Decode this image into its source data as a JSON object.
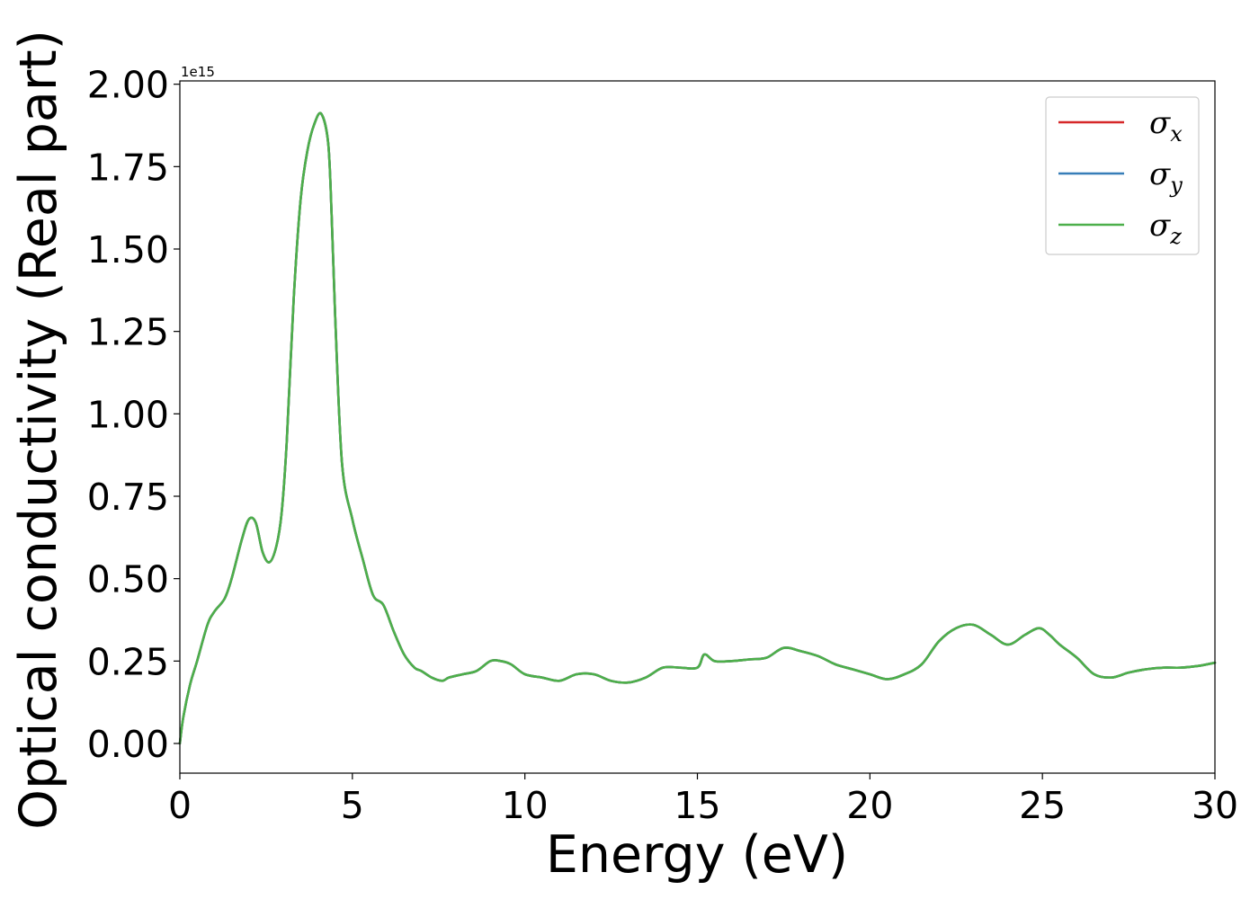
{
  "chart_data": {
    "type": "line",
    "xlabel": "Energy (eV)",
    "ylabel": "Optical conductivity (Real part)",
    "y_offset_label": "1e15",
    "y_scale": 1000000000000000.0,
    "xlim": [
      0,
      30
    ],
    "ylim": [
      -0.09,
      2.01
    ],
    "x_ticks": [
      0,
      5,
      10,
      15,
      20,
      25,
      30
    ],
    "x_tick_labels": [
      "0",
      "5",
      "10",
      "15",
      "20",
      "25",
      "30"
    ],
    "y_ticks": [
      0.0,
      0.25,
      0.5,
      0.75,
      1.0,
      1.25,
      1.5,
      1.75,
      2.0
    ],
    "y_tick_labels": [
      "0.00",
      "0.25",
      "0.50",
      "0.75",
      "1.00",
      "1.25",
      "1.50",
      "1.75",
      "2.00"
    ],
    "grid": false,
    "legend": {
      "position": "top-right",
      "entries": [
        {
          "base": "σ",
          "sub": "x",
          "color": "#d62728"
        },
        {
          "base": "σ",
          "sub": "y",
          "color": "#377eb8"
        },
        {
          "base": "σ",
          "sub": "z",
          "color": "#4daf4a"
        }
      ]
    },
    "x": [
      0.0,
      0.1,
      0.3,
      0.5,
      0.8,
      1.0,
      1.3,
      1.5,
      1.8,
      2.0,
      2.2,
      2.4,
      2.6,
      2.8,
      2.95,
      3.1,
      3.3,
      3.5,
      3.7,
      3.9,
      4.1,
      4.3,
      4.4,
      4.5,
      4.7,
      5.0,
      5.3,
      5.6,
      5.9,
      6.2,
      6.5,
      6.8,
      7.0,
      7.3,
      7.6,
      7.8,
      8.2,
      8.6,
      9.0,
      9.3,
      9.6,
      10.0,
      10.5,
      11.0,
      11.5,
      12.0,
      12.5,
      13.0,
      13.5,
      14.0,
      14.5,
      15.0,
      15.2,
      15.5,
      16.0,
      16.5,
      17.0,
      17.5,
      18.0,
      18.5,
      19.0,
      19.5,
      20.0,
      20.5,
      21.0,
      21.5,
      22.0,
      22.5,
      23.0,
      23.5,
      24.0,
      24.5,
      24.9,
      25.2,
      25.5,
      26.0,
      26.5,
      27.0,
      27.5,
      28.0,
      28.5,
      29.0,
      29.5,
      30.0
    ],
    "series": [
      {
        "name": "σx",
        "color": "#d62728",
        "values": [
          0.0,
          0.08,
          0.18,
          0.25,
          0.36,
          0.4,
          0.44,
          0.5,
          0.62,
          0.68,
          0.67,
          0.58,
          0.55,
          0.6,
          0.7,
          0.92,
          1.35,
          1.65,
          1.8,
          1.88,
          1.91,
          1.82,
          1.6,
          1.3,
          0.85,
          0.68,
          0.56,
          0.45,
          0.42,
          0.34,
          0.27,
          0.23,
          0.22,
          0.2,
          0.19,
          0.2,
          0.21,
          0.22,
          0.25,
          0.25,
          0.24,
          0.21,
          0.2,
          0.19,
          0.21,
          0.21,
          0.19,
          0.185,
          0.2,
          0.23,
          0.23,
          0.23,
          0.27,
          0.25,
          0.25,
          0.255,
          0.26,
          0.29,
          0.28,
          0.265,
          0.24,
          0.225,
          0.21,
          0.195,
          0.21,
          0.24,
          0.31,
          0.35,
          0.36,
          0.33,
          0.3,
          0.33,
          0.35,
          0.33,
          0.3,
          0.26,
          0.21,
          0.2,
          0.215,
          0.225,
          0.23,
          0.23,
          0.235,
          0.245
        ]
      },
      {
        "name": "σy",
        "color": "#377eb8",
        "values": [
          0.0,
          0.08,
          0.18,
          0.25,
          0.36,
          0.4,
          0.44,
          0.5,
          0.62,
          0.68,
          0.67,
          0.58,
          0.55,
          0.6,
          0.7,
          0.92,
          1.35,
          1.65,
          1.8,
          1.88,
          1.91,
          1.82,
          1.6,
          1.3,
          0.85,
          0.68,
          0.56,
          0.45,
          0.42,
          0.34,
          0.27,
          0.23,
          0.22,
          0.2,
          0.19,
          0.2,
          0.21,
          0.22,
          0.25,
          0.25,
          0.24,
          0.21,
          0.2,
          0.19,
          0.21,
          0.21,
          0.19,
          0.185,
          0.2,
          0.23,
          0.23,
          0.23,
          0.27,
          0.25,
          0.25,
          0.255,
          0.26,
          0.29,
          0.28,
          0.265,
          0.24,
          0.225,
          0.21,
          0.195,
          0.21,
          0.24,
          0.31,
          0.35,
          0.36,
          0.33,
          0.3,
          0.33,
          0.35,
          0.33,
          0.3,
          0.26,
          0.21,
          0.2,
          0.215,
          0.225,
          0.23,
          0.23,
          0.235,
          0.245
        ]
      },
      {
        "name": "σz",
        "color": "#4daf4a",
        "values": [
          0.0,
          0.08,
          0.18,
          0.25,
          0.36,
          0.4,
          0.44,
          0.5,
          0.62,
          0.68,
          0.67,
          0.58,
          0.55,
          0.6,
          0.7,
          0.92,
          1.35,
          1.65,
          1.8,
          1.88,
          1.91,
          1.82,
          1.6,
          1.3,
          0.85,
          0.68,
          0.56,
          0.45,
          0.42,
          0.34,
          0.27,
          0.23,
          0.22,
          0.2,
          0.19,
          0.2,
          0.21,
          0.22,
          0.25,
          0.25,
          0.24,
          0.21,
          0.2,
          0.19,
          0.21,
          0.21,
          0.19,
          0.185,
          0.2,
          0.23,
          0.23,
          0.23,
          0.27,
          0.25,
          0.25,
          0.255,
          0.26,
          0.29,
          0.28,
          0.265,
          0.24,
          0.225,
          0.21,
          0.195,
          0.21,
          0.24,
          0.31,
          0.35,
          0.36,
          0.33,
          0.3,
          0.33,
          0.35,
          0.33,
          0.3,
          0.26,
          0.21,
          0.2,
          0.215,
          0.225,
          0.23,
          0.23,
          0.235,
          0.245
        ]
      }
    ]
  }
}
